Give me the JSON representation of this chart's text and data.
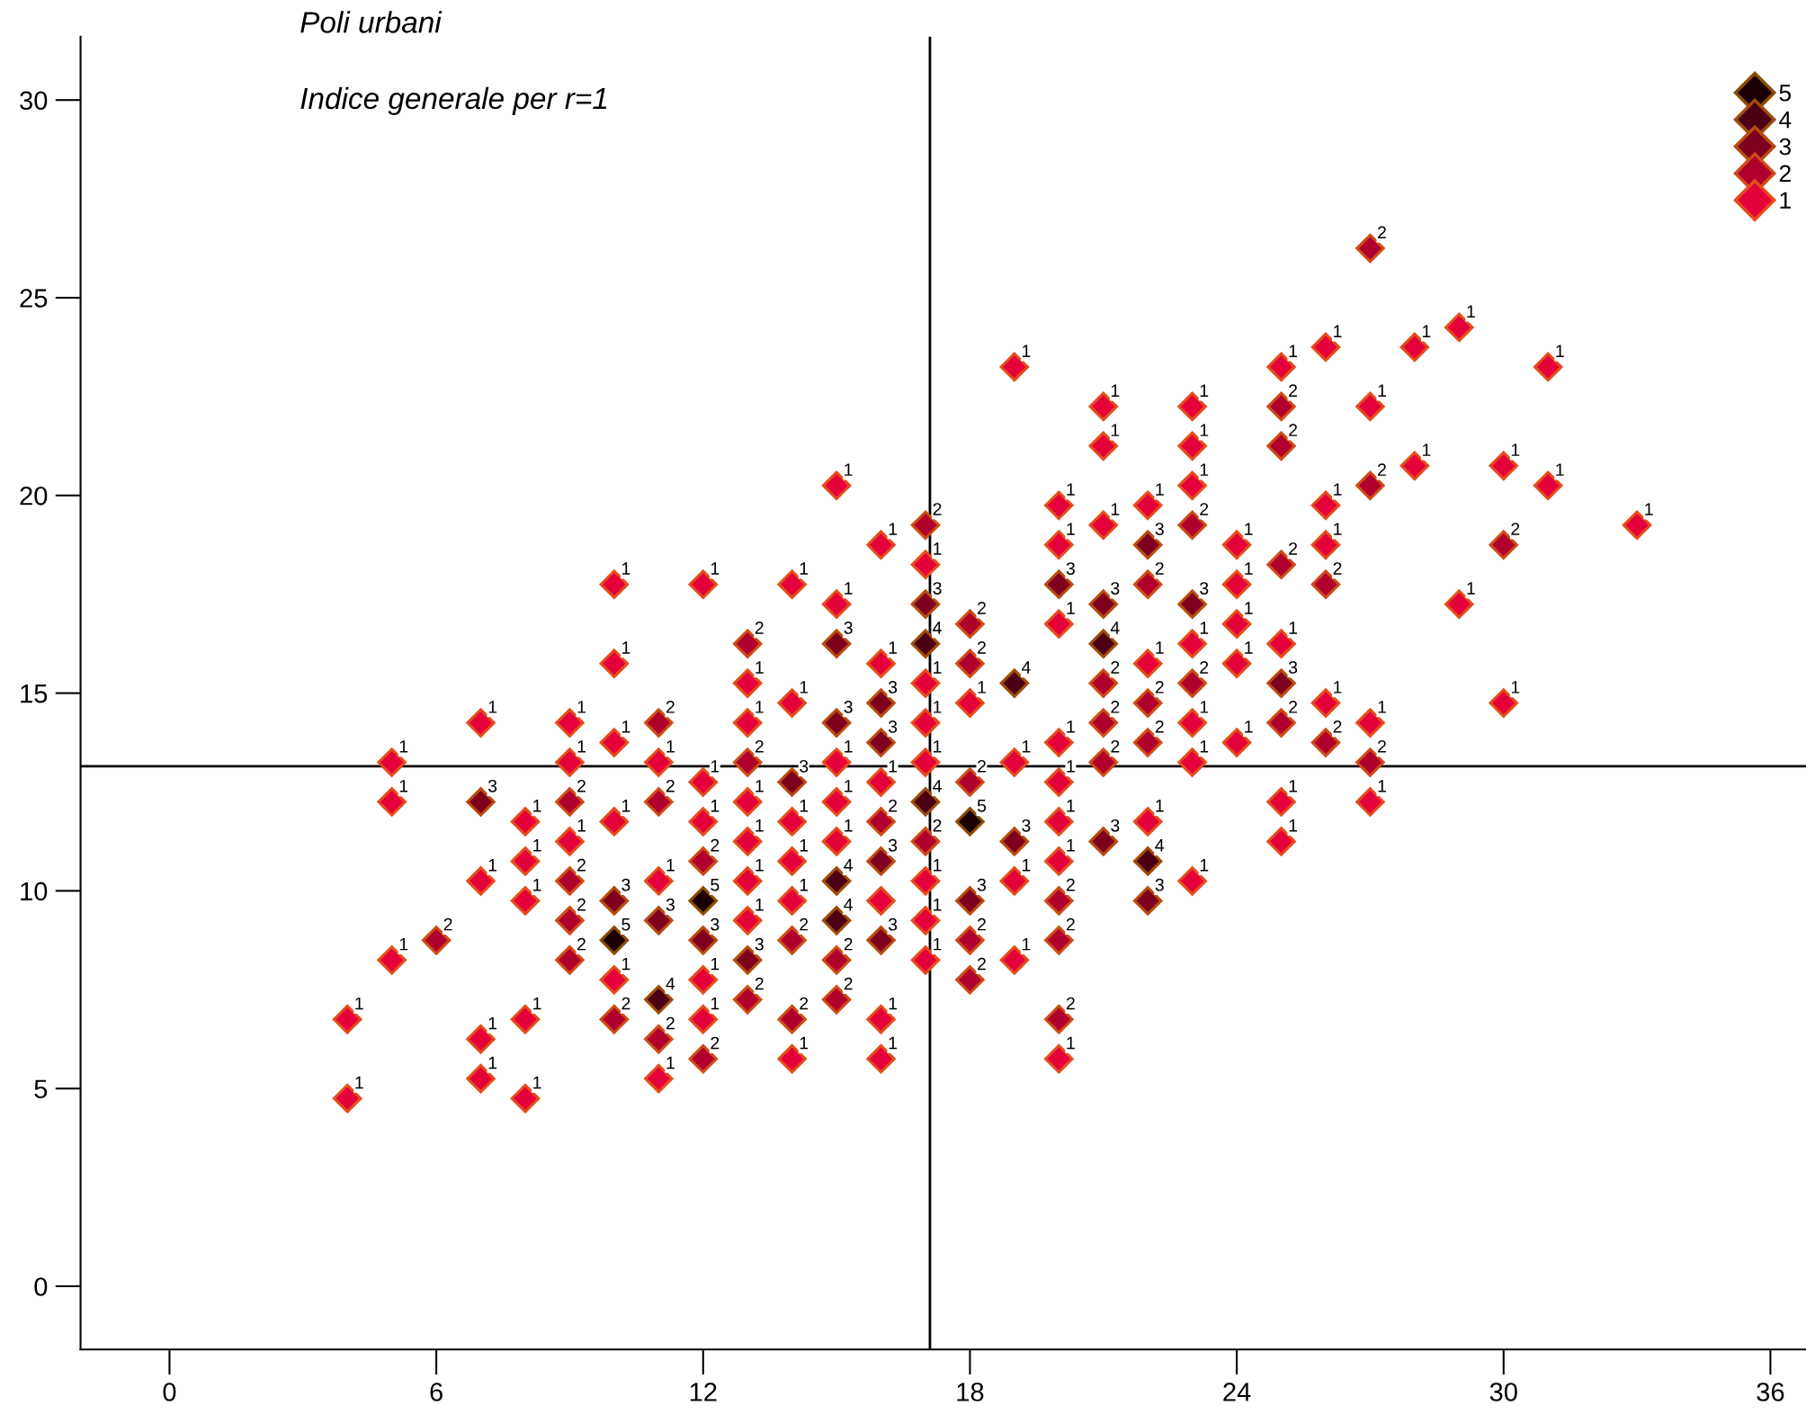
{
  "chart_data": {
    "type": "scatter",
    "title": "Poli urbani",
    "subtitle": "Indice generale per r=1",
    "xlim": [
      -2,
      36.8
    ],
    "ylim": [
      -1.6,
      31.6
    ],
    "xticks": [
      0,
      6,
      12,
      18,
      24,
      30,
      36
    ],
    "yticks": [
      0,
      5,
      10,
      15,
      20,
      25,
      30
    ],
    "marker": "diamond",
    "legend": "top right",
    "grid": false,
    "ref_lines": [
      {
        "axis": "x",
        "value": 17.1
      },
      {
        "axis": "y",
        "value": 13.15
      }
    ],
    "series": [
      {
        "name": "5",
        "color": "#1a0004",
        "x": [
          10,
          12,
          18
        ],
        "values": [
          8.75,
          9.75,
          11.75
        ]
      },
      {
        "name": "4",
        "color": "#4b0014",
        "x": [
          11,
          15,
          15,
          17,
          17,
          19,
          21,
          22
        ],
        "values": [
          7.25,
          10.25,
          9.25,
          16.25,
          12.25,
          15.25,
          16.25,
          10.75
        ]
      },
      {
        "name": "3",
        "color": "#7d001f",
        "x": [
          7,
          10,
          11,
          12,
          13,
          14,
          15,
          15,
          16,
          16,
          16,
          16,
          17,
          18,
          19,
          20,
          21,
          21,
          22,
          22,
          23,
          25
        ],
        "values": [
          12.25,
          9.75,
          9.25,
          8.75,
          8.25,
          12.75,
          16.25,
          14.25,
          14.75,
          13.75,
          10.75,
          8.75,
          17.25,
          9.75,
          11.25,
          17.75,
          17.25,
          11.25,
          18.75,
          9.75,
          17.25,
          15.25
        ]
      },
      {
        "name": "2",
        "color": "#b0002e",
        "x": [
          6,
          9,
          9,
          9,
          9,
          10,
          11,
          11,
          11,
          12,
          12,
          13,
          13,
          13,
          14,
          14,
          15,
          15,
          16,
          17,
          17,
          18,
          18,
          18,
          18,
          18,
          20,
          20,
          20,
          21,
          21,
          21,
          22,
          22,
          22,
          23,
          23,
          25,
          25,
          25,
          25,
          26,
          26,
          27,
          27,
          27,
          30
        ],
        "values": [
          8.75,
          12.25,
          10.25,
          9.25,
          8.25,
          6.75,
          14.25,
          12.25,
          6.25,
          10.75,
          5.75,
          16.25,
          13.25,
          7.25,
          8.75,
          6.75,
          8.25,
          7.25,
          11.75,
          19.25,
          11.25,
          16.75,
          15.75,
          12.75,
          8.75,
          7.75,
          9.75,
          8.75,
          6.75,
          15.25,
          14.25,
          13.25,
          17.75,
          14.75,
          13.75,
          19.25,
          15.25,
          22.25,
          21.25,
          18.25,
          14.25,
          17.75,
          13.75,
          26.25,
          20.25,
          13.25,
          18.75
        ]
      },
      {
        "name": "1",
        "color": "#e4003a",
        "x": [
          4,
          4,
          5,
          5,
          5,
          7,
          7,
          7,
          7,
          8,
          8,
          8,
          8,
          8,
          9,
          9,
          9,
          10,
          10,
          10,
          10,
          10,
          11,
          11,
          11,
          12,
          12,
          12,
          12,
          12,
          13,
          13,
          13,
          13,
          13,
          13,
          14,
          14,
          14,
          14,
          14,
          14,
          15,
          15,
          15,
          15,
          15,
          16,
          16,
          16,
          16,
          16,
          16,
          17,
          17,
          17,
          17,
          17,
          17,
          17,
          18,
          19,
          19,
          19,
          19,
          20,
          20,
          20,
          20,
          20,
          20,
          20,
          20,
          21,
          21,
          21,
          22,
          22,
          22,
          23,
          23,
          23,
          23,
          23,
          23,
          23,
          24,
          24,
          24,
          24,
          24,
          25,
          25,
          25,
          25,
          26,
          26,
          26,
          26,
          27,
          27,
          27,
          28,
          28,
          29,
          29,
          30,
          30,
          31,
          31,
          33
        ],
        "values": [
          6.75,
          4.75,
          13.25,
          12.25,
          8.25,
          14.25,
          10.25,
          6.25,
          5.25,
          11.75,
          10.75,
          9.75,
          6.75,
          4.75,
          14.25,
          13.25,
          11.25,
          17.75,
          15.75,
          13.75,
          11.75,
          7.75,
          13.25,
          10.25,
          5.25,
          17.75,
          12.75,
          11.75,
          7.75,
          6.75,
          15.25,
          14.25,
          12.25,
          11.25,
          10.25,
          9.25,
          17.75,
          14.75,
          11.75,
          10.75,
          9.75,
          5.75,
          20.25,
          17.25,
          13.25,
          12.25,
          11.25,
          18.75,
          15.75,
          12.75,
          9.75,
          6.75,
          5.75,
          18.25,
          15.25,
          14.25,
          13.25,
          10.25,
          9.25,
          8.25,
          14.75,
          23.25,
          13.25,
          10.25,
          8.25,
          19.75,
          18.75,
          16.75,
          13.75,
          12.75,
          11.75,
          10.75,
          5.75,
          22.25,
          21.25,
          19.25,
          19.75,
          15.75,
          11.75,
          22.25,
          21.25,
          20.25,
          16.25,
          14.25,
          13.25,
          10.25,
          18.75,
          17.75,
          16.75,
          15.75,
          13.75,
          23.25,
          16.25,
          12.25,
          11.25,
          23.75,
          19.75,
          18.75,
          14.75,
          22.25,
          14.25,
          12.25,
          23.75,
          20.75,
          24.25,
          17.25,
          20.75,
          14.75,
          23.25,
          20.25,
          19.25
        ]
      }
    ],
    "annotations": [
      {
        "text": "5",
        "x": 10,
        "y": 8.75
      },
      {
        "text": "5",
        "x": 12,
        "y": 9.75
      },
      {
        "text": "5",
        "x": 18,
        "y": 11.75
      },
      {
        "text": "4",
        "x": 11,
        "y": 7.25
      },
      {
        "text": "4",
        "x": 15,
        "y": 10.25
      },
      {
        "text": "4",
        "x": 15,
        "y": 9.25
      },
      {
        "text": "4",
        "x": 17,
        "y": 16.25
      },
      {
        "text": "4",
        "x": 17,
        "y": 12.25
      },
      {
        "text": "4",
        "x": 19,
        "y": 15.25
      },
      {
        "text": "4",
        "x": 21,
        "y": 16.25
      },
      {
        "text": "4",
        "x": 22,
        "y": 10.75
      },
      {
        "text": "3",
        "x": 7,
        "y": 12.25
      },
      {
        "text": "3",
        "x": 10,
        "y": 9.75
      },
      {
        "text": "3",
        "x": 11,
        "y": 9.25
      },
      {
        "text": "3",
        "x": 12,
        "y": 8.75
      },
      {
        "text": "3",
        "x": 13,
        "y": 8.25
      },
      {
        "text": "3",
        "x": 14,
        "y": 12.75
      },
      {
        "text": "3",
        "x": 15,
        "y": 16.25
      },
      {
        "text": "3",
        "x": 15,
        "y": 14.25
      },
      {
        "text": "3",
        "x": 16,
        "y": 14.75
      },
      {
        "text": "3",
        "x": 16,
        "y": 13.75
      },
      {
        "text": "3",
        "x": 16,
        "y": 10.75
      },
      {
        "text": "3",
        "x": 16,
        "y": 8.75
      },
      {
        "text": "3",
        "x": 17,
        "y": 17.25
      },
      {
        "text": "3",
        "x": 18,
        "y": 9.75
      },
      {
        "text": "3",
        "x": 19,
        "y": 11.25
      },
      {
        "text": "3",
        "x": 20,
        "y": 17.75
      },
      {
        "text": "3",
        "x": 21,
        "y": 17.25
      },
      {
        "text": "3",
        "x": 21,
        "y": 11.25
      },
      {
        "text": "3",
        "x": 22,
        "y": 18.75
      },
      {
        "text": "3",
        "x": 22,
        "y": 9.75
      },
      {
        "text": "3",
        "x": 23,
        "y": 17.25
      },
      {
        "text": "3",
        "x": 25,
        "y": 15.25
      },
      {
        "text": "2",
        "x": 6,
        "y": 8.75
      },
      {
        "text": "2",
        "x": 9,
        "y": 12.25
      },
      {
        "text": "2",
        "x": 9,
        "y": 10.25
      },
      {
        "text": "2",
        "x": 9,
        "y": 9.25
      },
      {
        "text": "2",
        "x": 9,
        "y": 8.25
      },
      {
        "text": "2",
        "x": 10,
        "y": 6.75
      },
      {
        "text": "2",
        "x": 11,
        "y": 14.25
      },
      {
        "text": "2",
        "x": 11,
        "y": 12.25
      },
      {
        "text": "2",
        "x": 11,
        "y": 6.25
      },
      {
        "text": "2",
        "x": 12,
        "y": 10.75
      },
      {
        "text": "2",
        "x": 12,
        "y": 5.75
      },
      {
        "text": "2",
        "x": 13,
        "y": 16.25
      },
      {
        "text": "2",
        "x": 13,
        "y": 13.25
      },
      {
        "text": "2",
        "x": 13,
        "y": 7.25
      },
      {
        "text": "2",
        "x": 14,
        "y": 8.75
      },
      {
        "text": "2",
        "x": 14,
        "y": 6.75
      },
      {
        "text": "2",
        "x": 15,
        "y": 8.25
      },
      {
        "text": "2",
        "x": 15,
        "y": 7.25
      },
      {
        "text": "2",
        "x": 16,
        "y": 11.75
      },
      {
        "text": "2",
        "x": 17,
        "y": 19.25
      },
      {
        "text": "2",
        "x": 17,
        "y": 11.25
      },
      {
        "text": "2",
        "x": 18,
        "y": 16.75
      },
      {
        "text": "2",
        "x": 18,
        "y": 15.75
      },
      {
        "text": "2",
        "x": 18,
        "y": 12.75
      },
      {
        "text": "2",
        "x": 18,
        "y": 8.75
      },
      {
        "text": "2",
        "x": 18,
        "y": 7.75
      },
      {
        "text": "2",
        "x": 20,
        "y": 9.75
      },
      {
        "text": "2",
        "x": 20,
        "y": 8.75
      },
      {
        "text": "2",
        "x": 20,
        "y": 6.75
      },
      {
        "text": "2",
        "x": 21,
        "y": 15.25
      },
      {
        "text": "2",
        "x": 21,
        "y": 14.25
      },
      {
        "text": "2",
        "x": 21,
        "y": 13.25
      },
      {
        "text": "2",
        "x": 22,
        "y": 17.75
      },
      {
        "text": "2",
        "x": 22,
        "y": 14.75
      },
      {
        "text": "2",
        "x": 22,
        "y": 13.75
      },
      {
        "text": "2",
        "x": 23,
        "y": 19.25
      },
      {
        "text": "2",
        "x": 23,
        "y": 15.25
      },
      {
        "text": "2",
        "x": 25,
        "y": 22.25
      },
      {
        "text": "2",
        "x": 25,
        "y": 21.25
      },
      {
        "text": "2",
        "x": 25,
        "y": 18.25
      },
      {
        "text": "2",
        "x": 25,
        "y": 14.25
      },
      {
        "text": "2",
        "x": 26,
        "y": 17.75
      },
      {
        "text": "2",
        "x": 26,
        "y": 13.75
      },
      {
        "text": "2",
        "x": 27,
        "y": 26.25
      },
      {
        "text": "2",
        "x": 27,
        "y": 20.25
      },
      {
        "text": "2",
        "x": 27,
        "y": 13.25
      },
      {
        "text": "2",
        "x": 30,
        "y": 18.75
      },
      {
        "text": "1",
        "x": 4,
        "y": 6.75
      },
      {
        "text": "1",
        "x": 4,
        "y": 4.75
      },
      {
        "text": "1",
        "x": 5,
        "y": 13.25
      },
      {
        "text": "1",
        "x": 5,
        "y": 12.25
      },
      {
        "text": "1",
        "x": 5,
        "y": 8.25
      },
      {
        "text": "1",
        "x": 7,
        "y": 14.25
      },
      {
        "text": "1",
        "x": 7,
        "y": 10.25
      },
      {
        "text": "1",
        "x": 7,
        "y": 6.25
      },
      {
        "text": "1",
        "x": 7,
        "y": 5.25
      },
      {
        "text": "1",
        "x": 8,
        "y": 11.75
      },
      {
        "text": "1",
        "x": 8,
        "y": 10.75
      },
      {
        "text": "1",
        "x": 8,
        "y": 9.75
      },
      {
        "text": "1",
        "x": 8,
        "y": 6.75
      },
      {
        "text": "1",
        "x": 8,
        "y": 4.75
      },
      {
        "text": "1",
        "x": 9,
        "y": 14.25
      },
      {
        "text": "1",
        "x": 9,
        "y": 13.25
      },
      {
        "text": "1",
        "x": 9,
        "y": 11.25
      },
      {
        "text": "1",
        "x": 10,
        "y": 17.75
      },
      {
        "text": "1",
        "x": 10,
        "y": 15.75
      },
      {
        "text": "1",
        "x": 10,
        "y": 13.75
      },
      {
        "text": "1",
        "x": 10,
        "y": 11.75
      },
      {
        "text": "1",
        "x": 10,
        "y": 7.75
      },
      {
        "text": "1",
        "x": 11,
        "y": 13.25
      },
      {
        "text": "1",
        "x": 11,
        "y": 10.25
      },
      {
        "text": "1",
        "x": 11,
        "y": 5.25
      },
      {
        "text": "1",
        "x": 12,
        "y": 17.75
      },
      {
        "text": "1",
        "x": 12,
        "y": 12.75
      },
      {
        "text": "1",
        "x": 12,
        "y": 11.75
      },
      {
        "text": "1",
        "x": 12,
        "y": 7.75
      },
      {
        "text": "1",
        "x": 12,
        "y": 6.75
      },
      {
        "text": "1",
        "x": 13,
        "y": 15.25
      },
      {
        "text": "1",
        "x": 13,
        "y": 14.25
      },
      {
        "text": "1",
        "x": 13,
        "y": 12.25
      },
      {
        "text": "1",
        "x": 13,
        "y": 11.25
      },
      {
        "text": "1",
        "x": 13,
        "y": 10.25
      },
      {
        "text": "1",
        "x": 13,
        "y": 9.25
      },
      {
        "text": "1",
        "x": 14,
        "y": 17.75
      },
      {
        "text": "1",
        "x": 14,
        "y": 14.75
      },
      {
        "text": "1",
        "x": 14,
        "y": 11.75
      },
      {
        "text": "1",
        "x": 14,
        "y": 10.75
      },
      {
        "text": "1",
        "x": 14,
        "y": 9.75
      },
      {
        "text": "1",
        "x": 14,
        "y": 5.75
      },
      {
        "text": "1",
        "x": 15,
        "y": 20.25
      },
      {
        "text": "1",
        "x": 15,
        "y": 17.25
      },
      {
        "text": "1",
        "x": 15,
        "y": 13.25
      },
      {
        "text": "1",
        "x": 15,
        "y": 12.25
      },
      {
        "text": "1",
        "x": 15,
        "y": 11.25
      },
      {
        "text": "1",
        "x": 16,
        "y": 18.75
      },
      {
        "text": "1",
        "x": 16,
        "y": 15.75
      },
      {
        "text": "1",
        "x": 16,
        "y": 12.75
      },
      {
        "text": "1",
        "x": 16,
        "y": 6.75
      },
      {
        "text": "1",
        "x": 16,
        "y": 5.75
      },
      {
        "text": "1",
        "x": 17,
        "y": 18.25
      },
      {
        "text": "1",
        "x": 17,
        "y": 15.25
      },
      {
        "text": "1",
        "x": 17,
        "y": 14.25
      },
      {
        "text": "1",
        "x": 17,
        "y": 13.25
      },
      {
        "text": "1",
        "x": 17,
        "y": 10.25
      },
      {
        "text": "1",
        "x": 17,
        "y": 9.25
      },
      {
        "text": "1",
        "x": 17,
        "y": 8.25
      },
      {
        "text": "1",
        "x": 18,
        "y": 14.75
      },
      {
        "text": "1",
        "x": 19,
        "y": 23.25
      },
      {
        "text": "1",
        "x": 19,
        "y": 13.25
      },
      {
        "text": "1",
        "x": 19,
        "y": 10.25
      },
      {
        "text": "1",
        "x": 19,
        "y": 8.25
      },
      {
        "text": "1",
        "x": 20,
        "y": 19.75
      },
      {
        "text": "1",
        "x": 20,
        "y": 18.75
      },
      {
        "text": "1",
        "x": 20,
        "y": 16.75
      },
      {
        "text": "1",
        "x": 20,
        "y": 13.75
      },
      {
        "text": "1",
        "x": 20,
        "y": 12.75
      },
      {
        "text": "1",
        "x": 20,
        "y": 11.75
      },
      {
        "text": "1",
        "x": 20,
        "y": 10.75
      },
      {
        "text": "1",
        "x": 20,
        "y": 5.75
      },
      {
        "text": "1",
        "x": 21,
        "y": 22.25
      },
      {
        "text": "1",
        "x": 21,
        "y": 21.25
      },
      {
        "text": "1",
        "x": 21,
        "y": 19.25
      },
      {
        "text": "1",
        "x": 22,
        "y": 19.75
      },
      {
        "text": "1",
        "x": 22,
        "y": 15.75
      },
      {
        "text": "1",
        "x": 22,
        "y": 11.75
      },
      {
        "text": "1",
        "x": 23,
        "y": 22.25
      },
      {
        "text": "1",
        "x": 23,
        "y": 21.25
      },
      {
        "text": "1",
        "x": 23,
        "y": 20.25
      },
      {
        "text": "1",
        "x": 23,
        "y": 16.25
      },
      {
        "text": "1",
        "x": 23,
        "y": 14.25
      },
      {
        "text": "1",
        "x": 23,
        "y": 13.25
      },
      {
        "text": "1",
        "x": 23,
        "y": 10.25
      },
      {
        "text": "1",
        "x": 24,
        "y": 18.75
      },
      {
        "text": "1",
        "x": 24,
        "y": 17.75
      },
      {
        "text": "1",
        "x": 24,
        "y": 16.75
      },
      {
        "text": "1",
        "x": 24,
        "y": 15.75
      },
      {
        "text": "1",
        "x": 24,
        "y": 13.75
      },
      {
        "text": "1",
        "x": 25,
        "y": 23.25
      },
      {
        "text": "1",
        "x": 25,
        "y": 16.25
      },
      {
        "text": "1",
        "x": 25,
        "y": 12.25
      },
      {
        "text": "1",
        "x": 25,
        "y": 11.25
      },
      {
        "text": "1",
        "x": 26,
        "y": 23.75
      },
      {
        "text": "1",
        "x": 26,
        "y": 19.75
      },
      {
        "text": "1",
        "x": 26,
        "y": 18.75
      },
      {
        "text": "1",
        "x": 26,
        "y": 14.75
      },
      {
        "text": "1",
        "x": 27,
        "y": 22.25
      },
      {
        "text": "1",
        "x": 27,
        "y": 14.25
      },
      {
        "text": "1",
        "x": 27,
        "y": 12.25
      },
      {
        "text": "1",
        "x": 28,
        "y": 23.75
      },
      {
        "text": "1",
        "x": 28,
        "y": 20.75
      },
      {
        "text": "1",
        "x": 29,
        "y": 24.25
      },
      {
        "text": "1",
        "x": 29,
        "y": 17.25
      },
      {
        "text": "1",
        "x": 30,
        "y": 20.75
      },
      {
        "text": "1",
        "x": 30,
        "y": 14.75
      },
      {
        "text": "1",
        "x": 31,
        "y": 23.25
      },
      {
        "text": "1",
        "x": 31,
        "y": 20.25
      },
      {
        "text": "1",
        "x": 33,
        "y": 19.25
      }
    ]
  }
}
